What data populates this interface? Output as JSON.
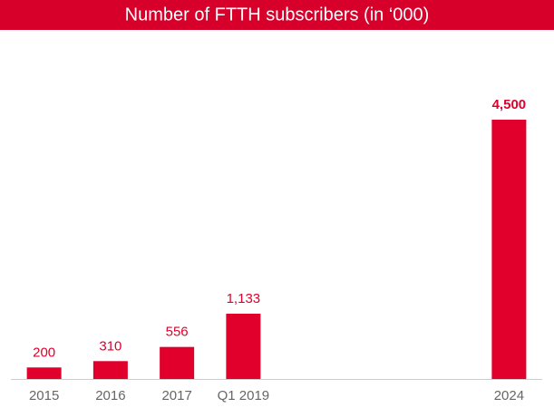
{
  "chart_data": {
    "type": "bar",
    "title": "Number of FTTH subscribers (in ‘000)",
    "categories": [
      "2015",
      "2016",
      "2017",
      "Q1 2019",
      null,
      null,
      null,
      "2024"
    ],
    "values": [
      200,
      310,
      556,
      1133,
      null,
      null,
      null,
      4500
    ],
    "value_labels": [
      "200",
      "310",
      "556",
      "1,133",
      null,
      null,
      null,
      "4,500"
    ],
    "color": "#e0002b"
  }
}
